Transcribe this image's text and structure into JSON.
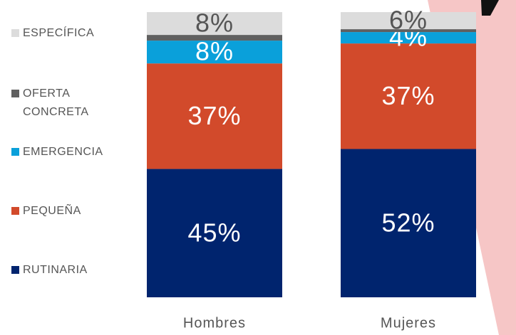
{
  "chart_data": {
    "type": "stacked_bar",
    "categories": [
      "Hombres",
      "Mujeres"
    ],
    "ylim": [
      0,
      100
    ],
    "series": [
      {
        "name": "RUTINARIA",
        "color": "#00246e",
        "values": [
          45,
          52
        ],
        "value_labels": [
          "45%",
          "52%"
        ],
        "label_color": "#ffffff"
      },
      {
        "name": "PEQUEÑA",
        "color": "#d24a2b",
        "values": [
          37,
          37
        ],
        "value_labels": [
          "37%",
          "37%"
        ],
        "label_color": "#ffffff"
      },
      {
        "name": "EMERGENCIA",
        "color": "#0aa0da",
        "values": [
          8,
          4
        ],
        "value_labels": [
          "8%",
          "4%"
        ],
        "label_color": "#ffffff"
      },
      {
        "name": "OFERTA CONCRETA",
        "color": "#606060",
        "values": [
          2,
          1
        ]
      },
      {
        "name": "ESPECÍFICA",
        "color": "#dcdcdc",
        "values": [
          8,
          6
        ],
        "value_labels": [
          "8%",
          "6%"
        ],
        "label_color": "#555555"
      }
    ]
  }
}
